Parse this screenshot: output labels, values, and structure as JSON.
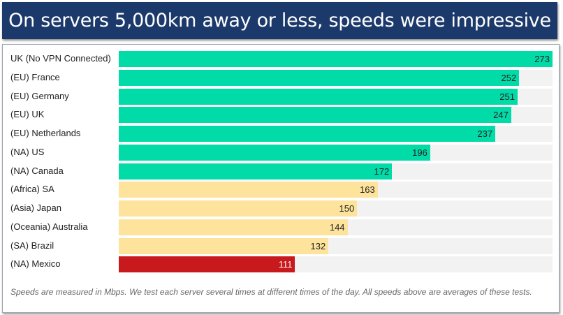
{
  "chart_data": {
    "type": "bar",
    "orientation": "horizontal",
    "title": "On servers 5,000km away or less, speeds were impressive",
    "categories": [
      "UK (No VPN Connected)",
      "(EU) France",
      "(EU) Germany",
      "(EU) UK",
      "(EU) Netherlands",
      "(NA) US",
      "(NA) Canada",
      "(Africa) SA",
      "(Asia) Japan",
      "(Oceania) Australia",
      "(SA) Brazil",
      "(NA) Mexico"
    ],
    "values": [
      273,
      252,
      251,
      247,
      237,
      196,
      172,
      163,
      150,
      144,
      132,
      111
    ],
    "colors": [
      "#00dba8",
      "#00dba8",
      "#00dba8",
      "#00dba8",
      "#00dba8",
      "#00dba8",
      "#00dba8",
      "#fde39b",
      "#fde39b",
      "#fde39b",
      "#fde39b",
      "#c8191c"
    ],
    "xlim": [
      0,
      273
    ],
    "grid": false,
    "note": "Speeds are measured in Mbps. We test each server several times at different times of the day. All speeds above are averages of these tests."
  }
}
